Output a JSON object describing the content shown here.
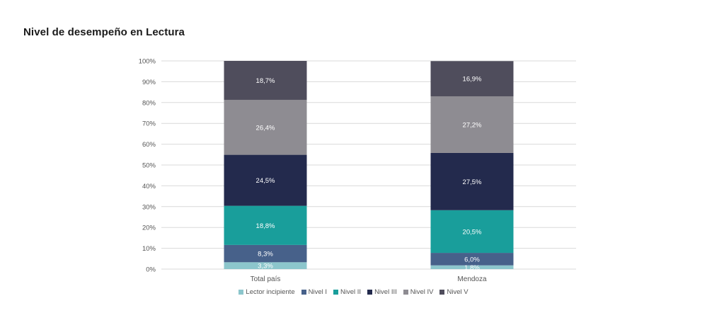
{
  "chart_data": {
    "type": "bar",
    "stacked": true,
    "title": "Nivel de desempeño en Lectura",
    "categories": [
      "Total país",
      "Mendoza"
    ],
    "yticks": [
      "0%",
      "10%",
      "20%",
      "30%",
      "40%",
      "50%",
      "60%",
      "70%",
      "80%",
      "90%",
      "100%"
    ],
    "ylim": [
      0,
      100
    ],
    "grid": true,
    "legend_position": "bottom",
    "series": [
      {
        "name": "Lector incipiente",
        "color": "#8cc6cc",
        "values": [
          3.3,
          1.8
        ],
        "labels": [
          "3,3%",
          "1,8%"
        ]
      },
      {
        "name": "Nivel I",
        "color": "#47618a",
        "values": [
          8.3,
          6.0
        ],
        "labels": [
          "8,3%",
          "6,0%"
        ]
      },
      {
        "name": "Nivel II",
        "color": "#199e9b",
        "values": [
          18.8,
          20.5
        ],
        "labels": [
          "18,8%",
          "20,5%"
        ]
      },
      {
        "name": "Nivel III",
        "color": "#232a4d",
        "values": [
          24.5,
          27.5
        ],
        "labels": [
          "24,5%",
          "27,5%"
        ]
      },
      {
        "name": "Nivel IV",
        "color": "#8e8c92",
        "values": [
          26.4,
          27.2
        ],
        "labels": [
          "26,4%",
          "27,2%"
        ]
      },
      {
        "name": "Nivel V",
        "color": "#4f4d5c",
        "values": [
          18.7,
          16.9
        ],
        "labels": [
          "18,7%",
          "16,9%"
        ]
      }
    ]
  }
}
